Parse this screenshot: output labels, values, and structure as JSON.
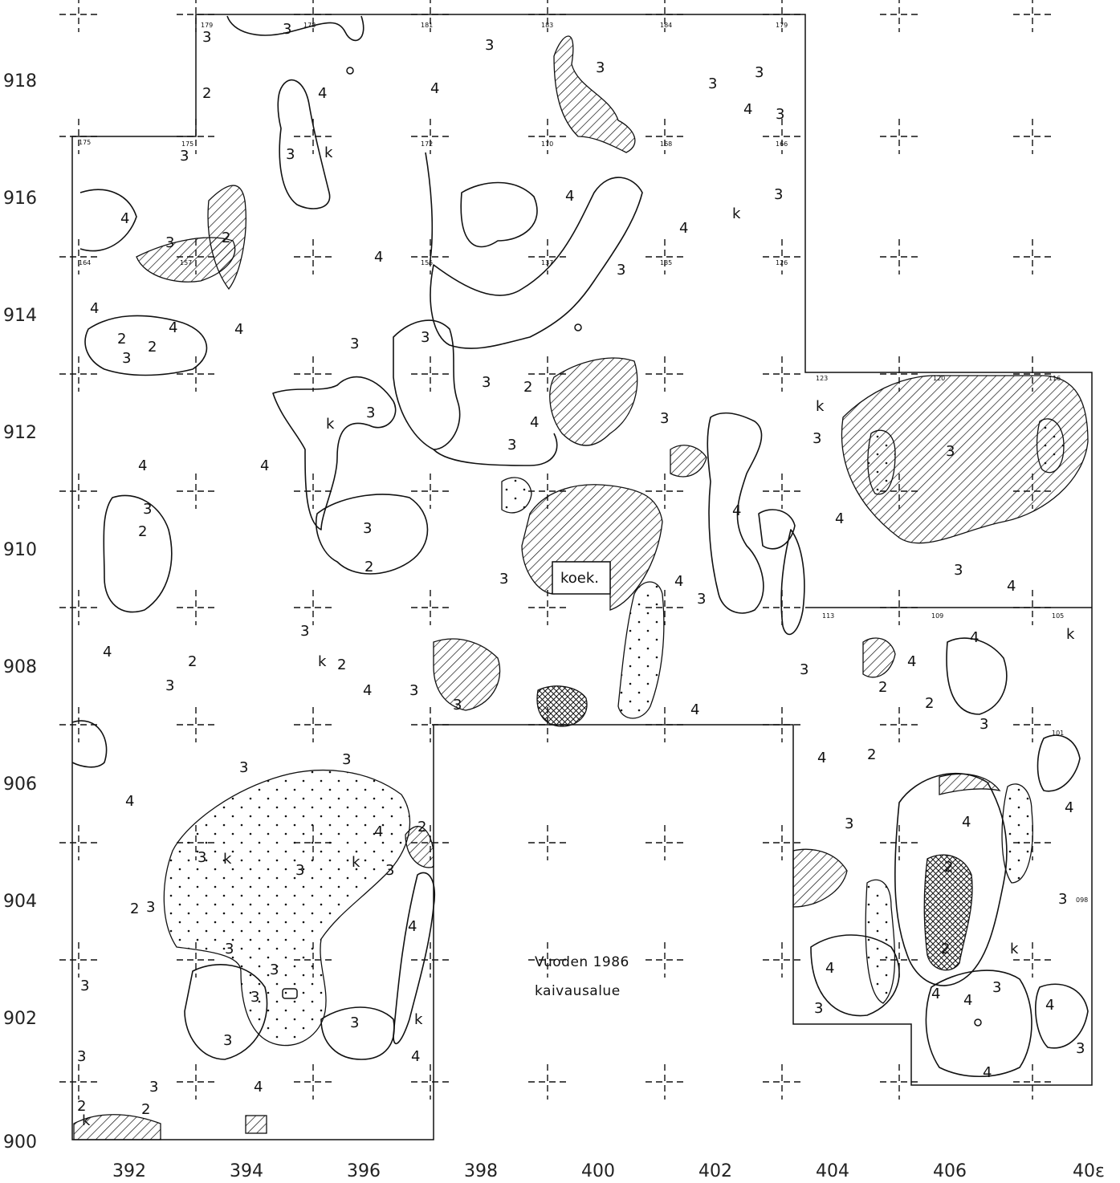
{
  "axes": {
    "y_labels": [
      "918",
      "916",
      "914",
      "912",
      "910",
      "908",
      "906",
      "904",
      "902",
      "900"
    ],
    "x_labels": [
      "392",
      "394",
      "396",
      "398",
      "400",
      "402",
      "404",
      "406",
      "40ε"
    ]
  },
  "caption": {
    "line1": "Vuoden 1986",
    "line2": "kaivausalue"
  },
  "koek_label": "koek.",
  "zone_numbers": [
    "2",
    "3",
    "4",
    "k"
  ],
  "depth_values": [
    "179",
    "178",
    "181",
    "183",
    "184",
    "179",
    "175",
    "175",
    "172",
    "170",
    "168",
    "166",
    "164",
    "157",
    "155",
    "137",
    "135",
    "126",
    "123",
    "120",
    "116",
    "113",
    "109",
    "105",
    "101",
    "098"
  ],
  "colors": {
    "ink": "#111111",
    "paper": "#ffffff"
  }
}
